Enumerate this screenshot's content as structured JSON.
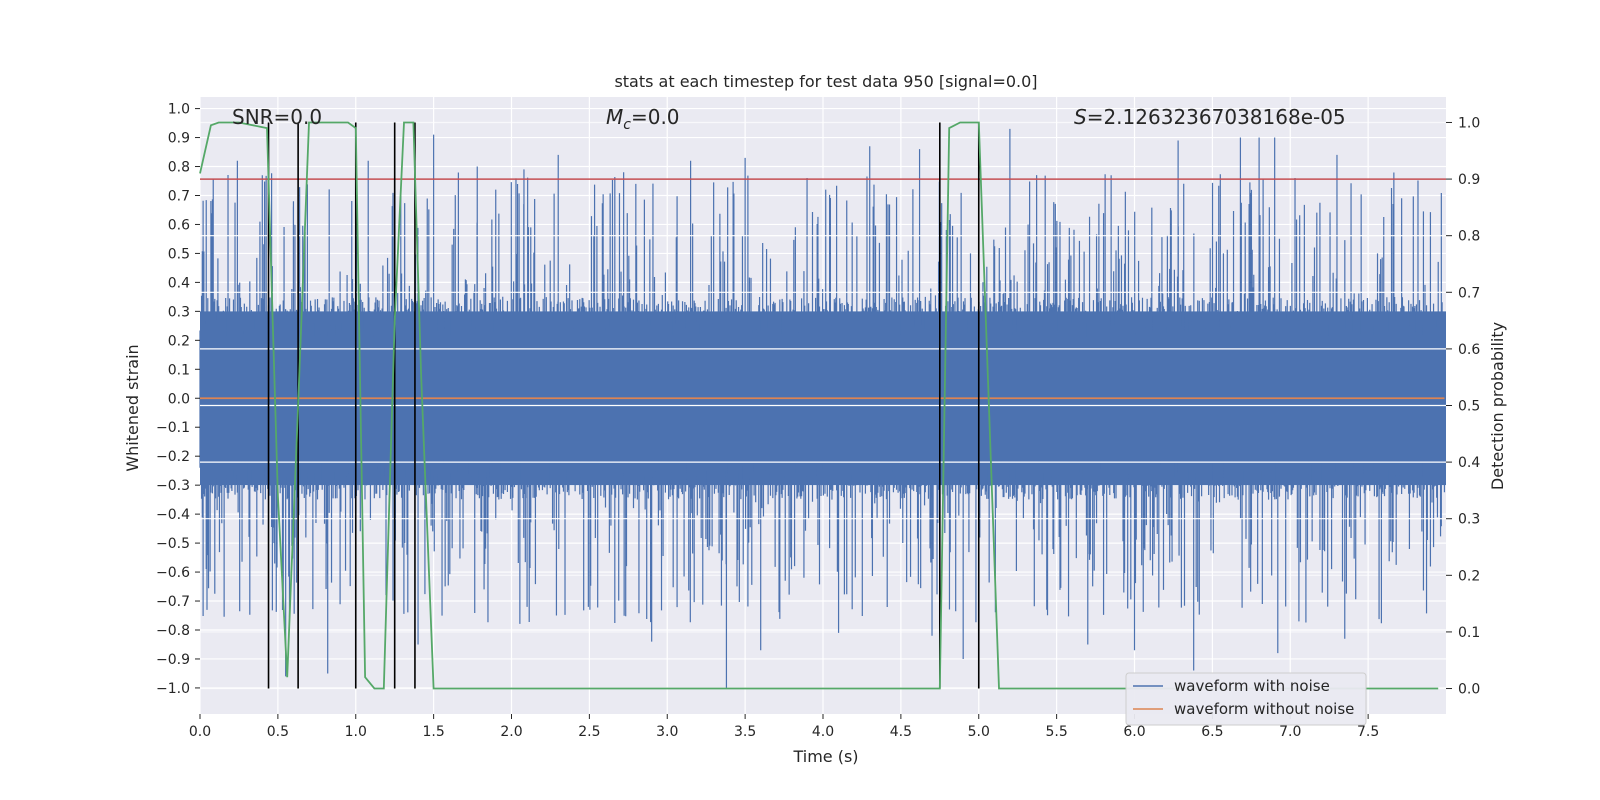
{
  "chart_data": {
    "type": "line",
    "title": "stats at each timestep for test data 950 [signal=0.0]",
    "xlabel": "Time (s)",
    "ylabel": "Whitened strain",
    "y2label": "Detection probability",
    "xlim": [
      0.0,
      8.0
    ],
    "ylim": [
      -1.09,
      1.04
    ],
    "y2lim": [
      -0.045,
      1.045
    ],
    "x_ticks": [
      0.0,
      0.5,
      1.0,
      1.5,
      2.0,
      2.5,
      3.0,
      3.5,
      4.0,
      4.5,
      5.0,
      5.5,
      6.0,
      6.5,
      7.0,
      7.5
    ],
    "x_tick_labels": [
      "0.0",
      "0.5",
      "1.0",
      "1.5",
      "2.0",
      "2.5",
      "3.0",
      "3.5",
      "4.0",
      "4.5",
      "5.0",
      "5.5",
      "6.0",
      "6.5",
      "7.0",
      "7.5"
    ],
    "y_ticks": [
      1.0,
      0.9,
      0.8,
      0.7,
      0.6,
      0.5,
      0.4,
      0.3,
      0.2,
      0.1,
      0.0,
      -0.1,
      -0.2,
      -0.3,
      -0.4,
      -0.5,
      -0.6,
      -0.7,
      -0.8,
      -0.9,
      -1.0
    ],
    "y_tick_labels": [
      "1.0",
      "0.9",
      "0.8",
      "0.7",
      "0.6",
      "0.5",
      "0.4",
      "0.3",
      "0.2",
      "0.1",
      "0.0",
      "−0.1",
      "−0.2",
      "−0.3",
      "−0.4",
      "−0.5",
      "−0.6",
      "−0.7",
      "−0.8",
      "−0.9",
      "−1.0"
    ],
    "y2_ticks": [
      1.0,
      0.9,
      0.8,
      0.7,
      0.6,
      0.5,
      0.4,
      0.3,
      0.2,
      0.1,
      0.0
    ],
    "y2_tick_labels": [
      "1.0",
      "0.9",
      "0.8",
      "0.7",
      "0.6",
      "0.5",
      "0.4",
      "0.3",
      "0.2",
      "0.1",
      "0.0"
    ],
    "annotations": {
      "snr": "SNR=0.0",
      "mc_symbol": "M",
      "mc_sub": "c",
      "mc_value": "=0.0",
      "s_symbol": "S",
      "s_value": "=2.12632367038168e-05"
    },
    "threshold": {
      "axis": "y2",
      "value": 0.9,
      "color": "#c44e52"
    },
    "detection_markers_x": [
      0.44,
      0.63,
      1.0,
      1.25,
      1.38,
      4.75,
      5.0
    ],
    "detection_probability": {
      "axis": "y2",
      "color": "#55a868",
      "x": [
        0.0,
        0.07,
        0.12,
        0.25,
        0.43,
        0.5,
        0.56,
        0.63,
        0.7,
        0.75,
        0.87,
        0.95,
        1.0,
        1.06,
        1.12,
        1.18,
        1.25,
        1.31,
        1.37,
        1.42,
        1.5,
        4.75,
        4.81,
        4.88,
        5.0,
        5.13,
        7.95
      ],
      "y": [
        0.91,
        0.995,
        1.0,
        1.0,
        0.99,
        0.34,
        0.02,
        0.5,
        1.0,
        1.0,
        1.0,
        1.0,
        0.99,
        0.02,
        0.0,
        0.0,
        0.65,
        1.0,
        1.0,
        0.55,
        0.0,
        0.0,
        0.99,
        1.0,
        1.0,
        0.0,
        0.0
      ]
    },
    "series": [
      {
        "name": "waveform with noise",
        "color": "#4c72b0",
        "axis": "y",
        "description": "dense whitened noise samples, mostly within ±0.35 with spikes up to ~0.94 and down to ~-1.0",
        "approx_envelope": {
          "core_abs": 0.35,
          "max": 0.94,
          "min": -1.0
        },
        "spikes_x": [
          0.24,
          0.4,
          0.6,
          1.08,
          1.5,
          1.78,
          2.08,
          2.3,
          2.72,
          3.15,
          3.5,
          4.3,
          4.62,
          5.2,
          5.85,
          6.28,
          6.68,
          6.8,
          6.9,
          7.3
        ],
        "spikes_y": [
          0.82,
          0.77,
          0.68,
          0.82,
          0.91,
          0.8,
          0.79,
          0.84,
          0.78,
          0.82,
          0.83,
          0.87,
          0.86,
          0.93,
          0.77,
          0.89,
          0.9,
          0.9,
          0.9,
          0.84
        ],
        "dips_x": [
          0.55,
          0.63,
          0.82,
          1.4,
          2.1,
          2.9,
          3.38,
          3.6,
          4.1,
          4.7,
          4.9,
          5.7,
          6.0,
          6.38,
          6.92,
          7.35
        ],
        "dips_y": [
          -0.96,
          -0.88,
          -0.95,
          -0.85,
          -0.72,
          -0.84,
          -1.0,
          -0.87,
          -0.81,
          -0.82,
          -0.9,
          -0.85,
          -0.87,
          -0.94,
          -0.88,
          -0.83
        ]
      },
      {
        "name": "waveform without noise",
        "color": "#dd8452",
        "axis": "y",
        "x": [
          0.0,
          8.0
        ],
        "values": [
          0.0,
          0.0
        ]
      }
    ],
    "legend": {
      "placement": "lower-right",
      "entries": [
        {
          "label": "waveform with noise",
          "color": "#4c72b0"
        },
        {
          "label": "waveform without noise",
          "color": "#dd8452"
        }
      ]
    },
    "grid": true
  }
}
